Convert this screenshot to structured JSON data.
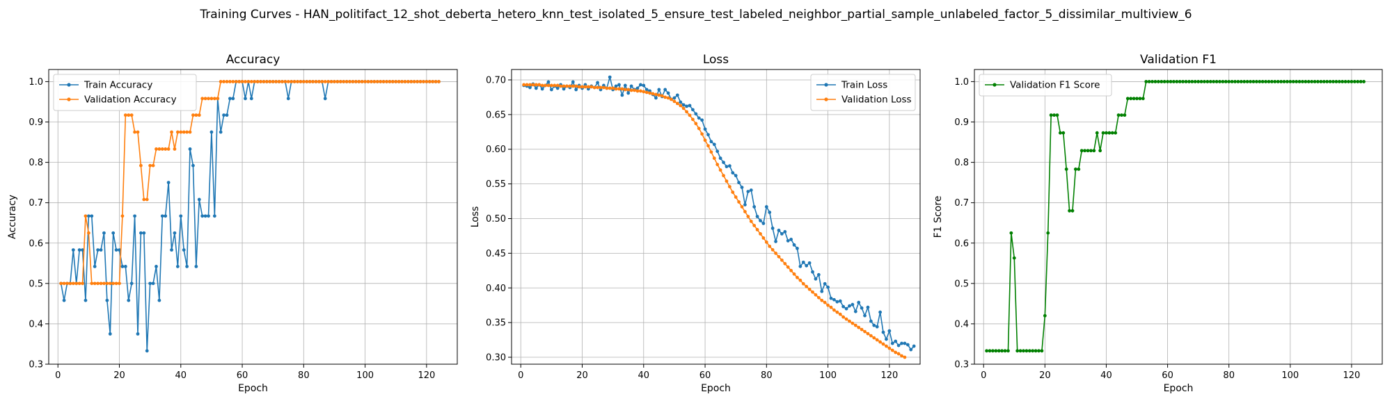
{
  "figure": {
    "title": "Training Curves - HAN_politifact_12_shot_deberta_hetero_knn_test_isolated_5_ensure_test_labeled_neighbor_partial_sample_unlabeled_factor_5_dissimilar_multiview_6"
  },
  "colors": {
    "blue": "#1f77b4",
    "orange": "#ff7f0e",
    "green": "#008000"
  },
  "chart_data": [
    {
      "type": "line",
      "title": "Accuracy",
      "xlabel": "Epoch",
      "ylabel": "Accuracy",
      "xlim": [
        -3,
        130
      ],
      "ylim": [
        0.3,
        1.03
      ],
      "xticks": [
        0,
        20,
        40,
        60,
        80,
        100,
        120
      ],
      "yticks": [
        0.3,
        0.4,
        0.5,
        0.6,
        0.7,
        0.8,
        0.9,
        1.0
      ],
      "ytick_labels": [
        "0.3",
        "0.4",
        "0.5",
        "0.6",
        "0.7",
        "0.8",
        "0.9",
        "1.0"
      ],
      "grid": true,
      "legend": "upper-left",
      "x_start": 1,
      "series": [
        {
          "name": "Train Accuracy",
          "color": "#1f77b4",
          "values": [
            0.5,
            0.458,
            0.5,
            0.5,
            0.583,
            0.5,
            0.583,
            0.583,
            0.458,
            0.667,
            0.667,
            0.542,
            0.583,
            0.583,
            0.625,
            0.458,
            0.375,
            0.625,
            0.583,
            0.583,
            0.542,
            0.542,
            0.458,
            0.5,
            0.667,
            0.375,
            0.625,
            0.625,
            0.333,
            0.5,
            0.5,
            0.542,
            0.458,
            0.667,
            0.667,
            0.75,
            0.583,
            0.625,
            0.542,
            0.667,
            0.583,
            0.542,
            0.833,
            0.792,
            0.542,
            0.708,
            0.667,
            0.667,
            0.667,
            0.875,
            0.667,
            0.958,
            0.875,
            0.917,
            0.917,
            0.958,
            0.958,
            1.0,
            1.0,
            1.0,
            0.958,
            1.0,
            0.958,
            1.0,
            1.0,
            1.0,
            1.0,
            1.0,
            1.0,
            1.0,
            1.0,
            1.0,
            1.0,
            1.0,
            0.958,
            1.0,
            1.0,
            1.0,
            1.0,
            1.0,
            1.0,
            1.0,
            1.0,
            1.0,
            1.0,
            1.0,
            0.958,
            1.0,
            1.0,
            1.0,
            1.0,
            1.0,
            1.0,
            1.0,
            1.0,
            1.0,
            1.0,
            1.0,
            1.0,
            1.0,
            1.0,
            1.0,
            1.0,
            1.0,
            1.0,
            1.0,
            1.0,
            1.0,
            1.0,
            1.0,
            1.0,
            1.0,
            1.0,
            1.0,
            1.0,
            1.0,
            1.0,
            1.0,
            1.0,
            1.0,
            1.0,
            1.0,
            1.0,
            1.0
          ]
        },
        {
          "name": "Validation Accuracy",
          "color": "#ff7f0e",
          "values": [
            0.5,
            0.5,
            0.5,
            0.5,
            0.5,
            0.5,
            0.5,
            0.5,
            0.667,
            0.625,
            0.5,
            0.5,
            0.5,
            0.5,
            0.5,
            0.5,
            0.5,
            0.5,
            0.5,
            0.5,
            0.667,
            0.917,
            0.917,
            0.917,
            0.875,
            0.875,
            0.792,
            0.708,
            0.708,
            0.792,
            0.792,
            0.833,
            0.833,
            0.833,
            0.833,
            0.833,
            0.875,
            0.833,
            0.875,
            0.875,
            0.875,
            0.875,
            0.875,
            0.917,
            0.917,
            0.917,
            0.958,
            0.958,
            0.958,
            0.958,
            0.958,
            0.958,
            1.0,
            1.0,
            1.0,
            1.0,
            1.0,
            1.0,
            1.0,
            1.0,
            1.0,
            1.0,
            1.0,
            1.0,
            1.0,
            1.0,
            1.0,
            1.0,
            1.0,
            1.0,
            1.0,
            1.0,
            1.0,
            1.0,
            1.0,
            1.0,
            1.0,
            1.0,
            1.0,
            1.0,
            1.0,
            1.0,
            1.0,
            1.0,
            1.0,
            1.0,
            1.0,
            1.0,
            1.0,
            1.0,
            1.0,
            1.0,
            1.0,
            1.0,
            1.0,
            1.0,
            1.0,
            1.0,
            1.0,
            1.0,
            1.0,
            1.0,
            1.0,
            1.0,
            1.0,
            1.0,
            1.0,
            1.0,
            1.0,
            1.0,
            1.0,
            1.0,
            1.0,
            1.0,
            1.0,
            1.0,
            1.0,
            1.0,
            1.0,
            1.0,
            1.0,
            1.0,
            1.0,
            1.0
          ]
        }
      ]
    },
    {
      "type": "line",
      "title": "Loss",
      "xlabel": "Epoch",
      "ylabel": "Loss",
      "xlim": [
        -3,
        130
      ],
      "ylim": [
        0.29,
        0.715
      ],
      "xticks": [
        0,
        20,
        40,
        60,
        80,
        100,
        120
      ],
      "yticks": [
        0.3,
        0.35,
        0.4,
        0.45,
        0.5,
        0.55,
        0.6,
        0.65,
        0.7
      ],
      "ytick_labels": [
        "0.30",
        "0.35",
        "0.40",
        "0.45",
        "0.50",
        "0.55",
        "0.60",
        "0.65",
        "0.70"
      ],
      "grid": true,
      "legend": "upper-right",
      "x_start": 1,
      "series": [
        {
          "name": "Train Loss",
          "color": "#1f77b4",
          "values": [
            0.692,
            0.691,
            0.689,
            0.694,
            0.688,
            0.693,
            0.687,
            0.692,
            0.697,
            0.686,
            0.691,
            0.688,
            0.693,
            0.687,
            0.691,
            0.689,
            0.697,
            0.686,
            0.692,
            0.688,
            0.693,
            0.687,
            0.691,
            0.689,
            0.696,
            0.686,
            0.692,
            0.688,
            0.704,
            0.686,
            0.691,
            0.693,
            0.678,
            0.692,
            0.681,
            0.691,
            0.686,
            0.688,
            0.693,
            0.692,
            0.686,
            0.684,
            0.679,
            0.674,
            0.686,
            0.676,
            0.686,
            0.681,
            0.672,
            0.674,
            0.678,
            0.668,
            0.664,
            0.662,
            0.663,
            0.657,
            0.651,
            0.645,
            0.642,
            0.629,
            0.621,
            0.611,
            0.607,
            0.597,
            0.587,
            0.581,
            0.575,
            0.576,
            0.566,
            0.562,
            0.552,
            0.545,
            0.52,
            0.539,
            0.541,
            0.517,
            0.503,
            0.497,
            0.493,
            0.517,
            0.509,
            0.486,
            0.467,
            0.483,
            0.478,
            0.481,
            0.468,
            0.47,
            0.462,
            0.457,
            0.431,
            0.437,
            0.432,
            0.436,
            0.423,
            0.413,
            0.419,
            0.395,
            0.406,
            0.401,
            0.385,
            0.383,
            0.38,
            0.381,
            0.373,
            0.37,
            0.374,
            0.376,
            0.366,
            0.379,
            0.371,
            0.36,
            0.372,
            0.352,
            0.346,
            0.344,
            0.365,
            0.336,
            0.326,
            0.338,
            0.32,
            0.323,
            0.317,
            0.32,
            0.32,
            0.318,
            0.311,
            0.316
          ]
        },
        {
          "name": "Validation Loss",
          "color": "#ff7f0e",
          "values": [
            0.693,
            0.693,
            0.693,
            0.693,
            0.693,
            0.693,
            0.692,
            0.692,
            0.692,
            0.692,
            0.692,
            0.692,
            0.691,
            0.691,
            0.691,
            0.691,
            0.691,
            0.691,
            0.69,
            0.69,
            0.69,
            0.69,
            0.69,
            0.689,
            0.689,
            0.689,
            0.689,
            0.688,
            0.688,
            0.688,
            0.687,
            0.687,
            0.687,
            0.686,
            0.686,
            0.685,
            0.685,
            0.684,
            0.684,
            0.683,
            0.682,
            0.681,
            0.68,
            0.679,
            0.678,
            0.677,
            0.675,
            0.674,
            0.672,
            0.669,
            0.666,
            0.663,
            0.659,
            0.654,
            0.649,
            0.643,
            0.637,
            0.63,
            0.622,
            0.613,
            0.605,
            0.596,
            0.587,
            0.578,
            0.57,
            0.562,
            0.554,
            0.546,
            0.538,
            0.531,
            0.524,
            0.517,
            0.51,
            0.503,
            0.496,
            0.49,
            0.484,
            0.478,
            0.472,
            0.466,
            0.46,
            0.455,
            0.45,
            0.445,
            0.44,
            0.435,
            0.43,
            0.425,
            0.42,
            0.415,
            0.411,
            0.406,
            0.402,
            0.398,
            0.394,
            0.39,
            0.386,
            0.382,
            0.379,
            0.375,
            0.372,
            0.368,
            0.365,
            0.362,
            0.358,
            0.355,
            0.352,
            0.349,
            0.346,
            0.343,
            0.34,
            0.337,
            0.334,
            0.331,
            0.328,
            0.325,
            0.322,
            0.319,
            0.316,
            0.313,
            0.31,
            0.307,
            0.305,
            0.302,
            0.3
          ]
        }
      ]
    },
    {
      "type": "line",
      "title": "Validation F1",
      "xlabel": "Epoch",
      "ylabel": "F1 Score",
      "xlim": [
        -3,
        130
      ],
      "ylim": [
        0.3,
        1.03
      ],
      "xticks": [
        0,
        20,
        40,
        60,
        80,
        100,
        120
      ],
      "yticks": [
        0.3,
        0.4,
        0.5,
        0.6,
        0.7,
        0.8,
        0.9,
        1.0
      ],
      "ytick_labels": [
        "0.3",
        "0.4",
        "0.5",
        "0.6",
        "0.7",
        "0.8",
        "0.9",
        "1.0"
      ],
      "grid": true,
      "legend": "upper-left",
      "x_start": 1,
      "series": [
        {
          "name": "Validation F1 Score",
          "color": "#008000",
          "values": [
            0.333,
            0.333,
            0.333,
            0.333,
            0.333,
            0.333,
            0.333,
            0.333,
            0.625,
            0.563,
            0.333,
            0.333,
            0.333,
            0.333,
            0.333,
            0.333,
            0.333,
            0.333,
            0.333,
            0.42,
            0.625,
            0.917,
            0.917,
            0.917,
            0.873,
            0.873,
            0.783,
            0.68,
            0.68,
            0.783,
            0.783,
            0.829,
            0.829,
            0.829,
            0.829,
            0.829,
            0.873,
            0.829,
            0.873,
            0.873,
            0.873,
            0.873,
            0.873,
            0.917,
            0.917,
            0.917,
            0.958,
            0.958,
            0.958,
            0.958,
            0.958,
            0.958,
            1.0,
            1.0,
            1.0,
            1.0,
            1.0,
            1.0,
            1.0,
            1.0,
            1.0,
            1.0,
            1.0,
            1.0,
            1.0,
            1.0,
            1.0,
            1.0,
            1.0,
            1.0,
            1.0,
            1.0,
            1.0,
            1.0,
            1.0,
            1.0,
            1.0,
            1.0,
            1.0,
            1.0,
            1.0,
            1.0,
            1.0,
            1.0,
            1.0,
            1.0,
            1.0,
            1.0,
            1.0,
            1.0,
            1.0,
            1.0,
            1.0,
            1.0,
            1.0,
            1.0,
            1.0,
            1.0,
            1.0,
            1.0,
            1.0,
            1.0,
            1.0,
            1.0,
            1.0,
            1.0,
            1.0,
            1.0,
            1.0,
            1.0,
            1.0,
            1.0,
            1.0,
            1.0,
            1.0,
            1.0,
            1.0,
            1.0,
            1.0,
            1.0,
            1.0,
            1.0,
            1.0,
            1.0
          ]
        }
      ]
    }
  ]
}
